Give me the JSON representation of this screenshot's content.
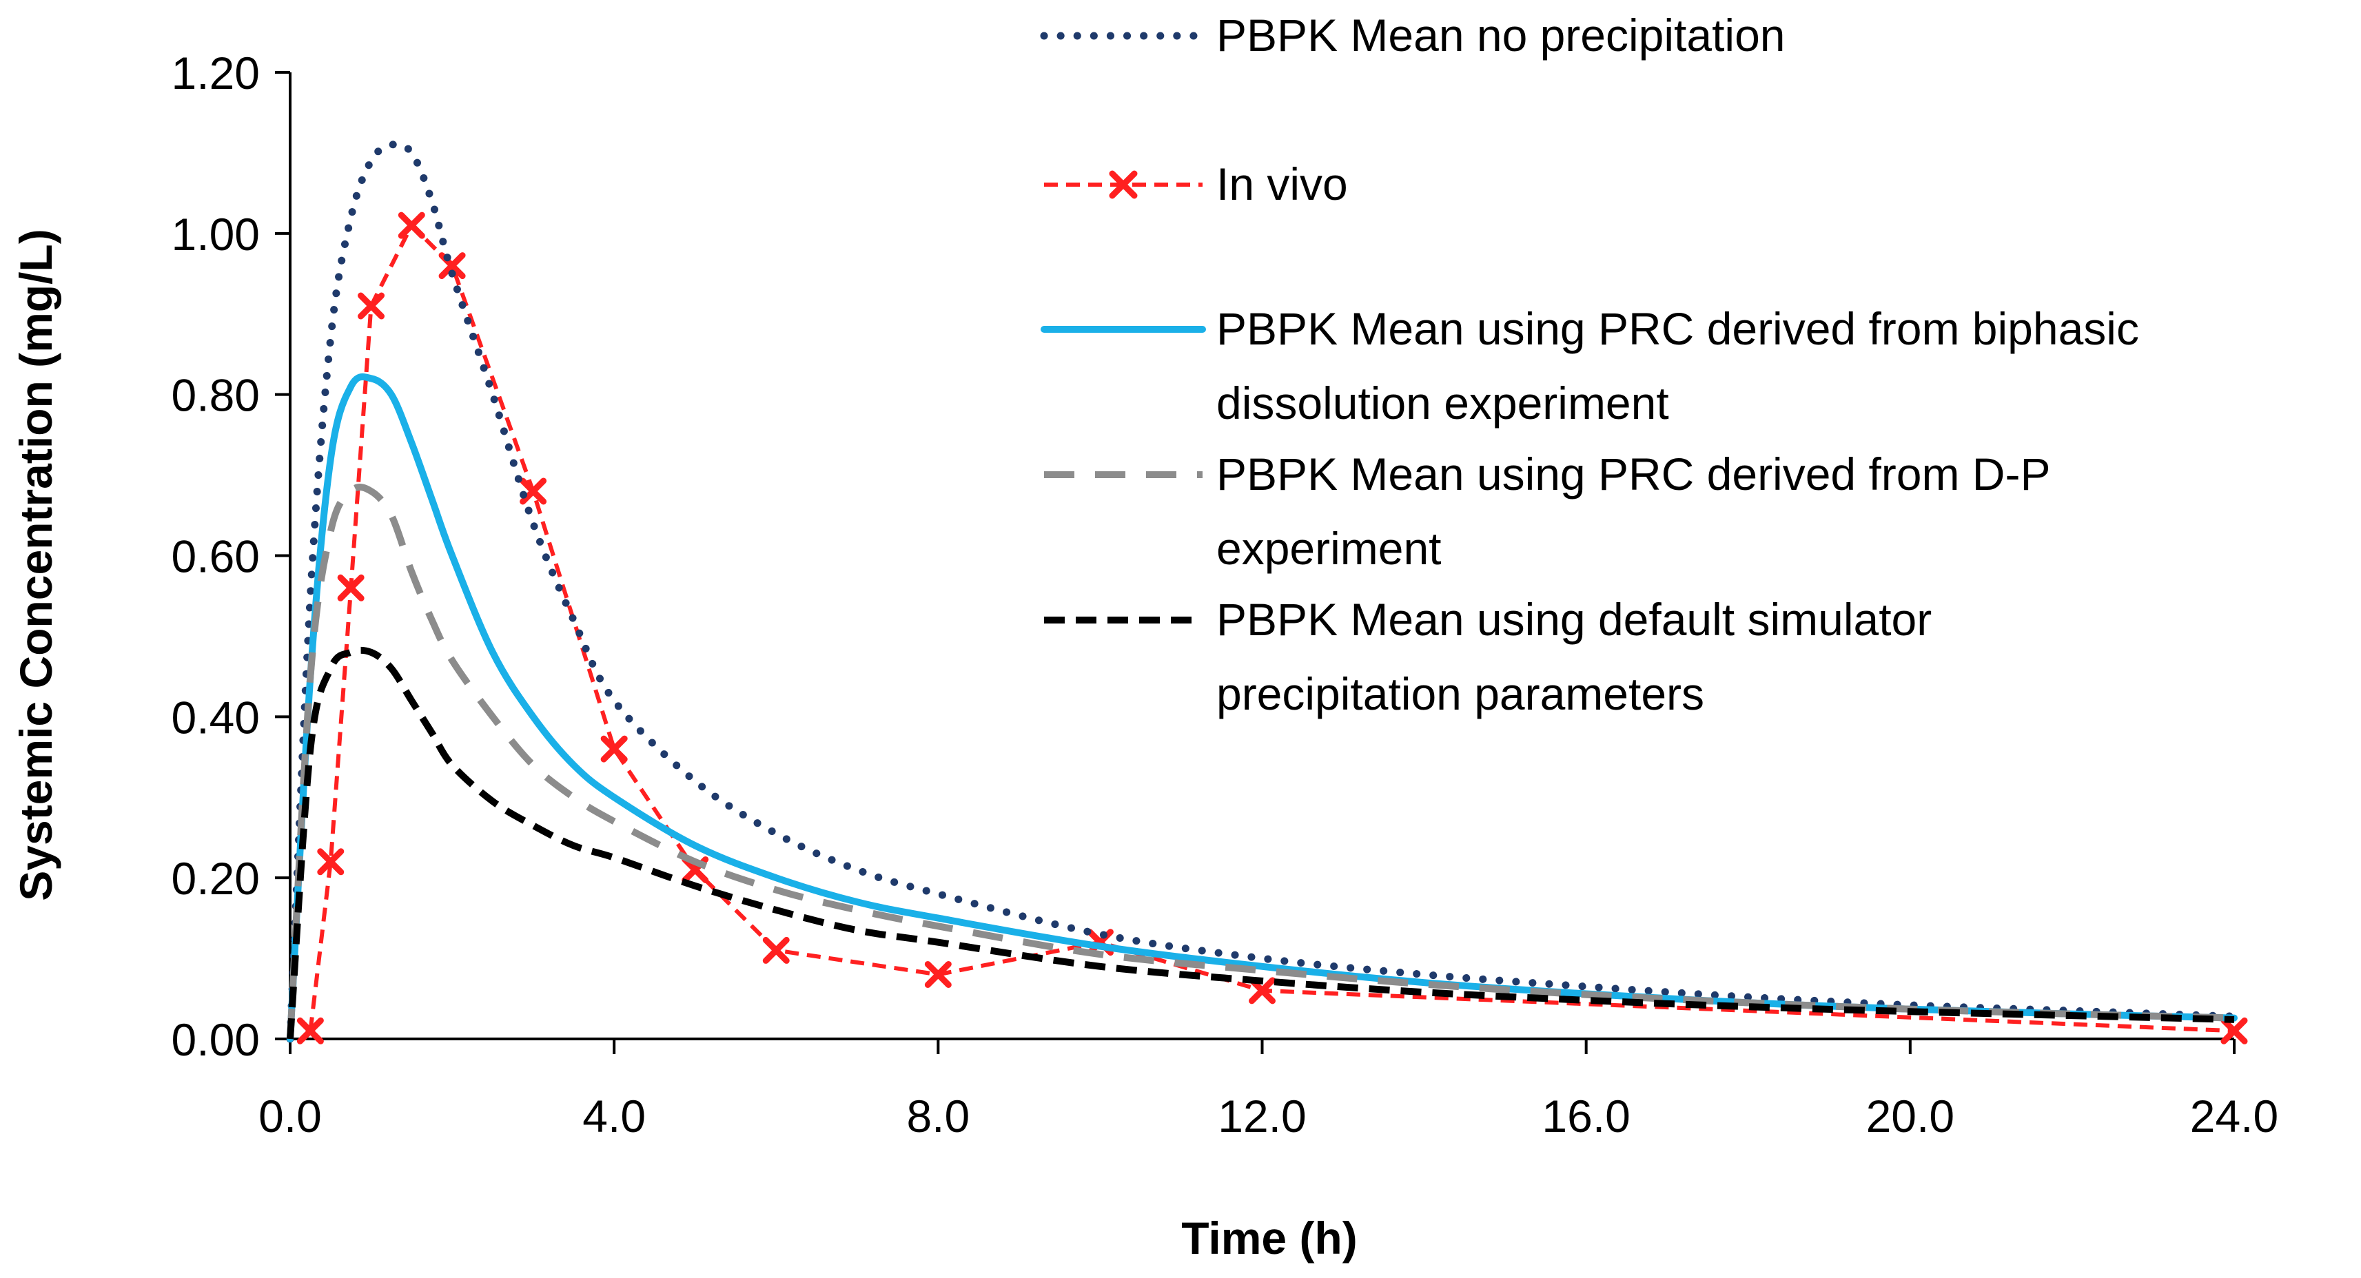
{
  "chart_data": {
    "type": "line",
    "title": "",
    "xlabel": "Time (h)",
    "ylabel": "Systemic Concentration (mg/L)",
    "xlim": [
      0,
      24
    ],
    "ylim": [
      0,
      1.2
    ],
    "x_ticks": [
      "0.0",
      "4.0",
      "8.0",
      "12.0",
      "16.0",
      "20.0",
      "24.0"
    ],
    "y_ticks": [
      "0.00",
      "0.20",
      "0.40",
      "0.60",
      "0.80",
      "1.00",
      "1.20"
    ],
    "grid": false,
    "legend_position": "top-right",
    "series": [
      {
        "name": "PBPK Mean no precipitation",
        "style": "dotted",
        "color": "#1f3a6b",
        "x": [
          0,
          0.25,
          0.5,
          0.75,
          1.0,
          1.25,
          1.5,
          1.75,
          2.0,
          2.5,
          3.0,
          3.5,
          4.0,
          5,
          6,
          7,
          8,
          10,
          12,
          14,
          16,
          18,
          20,
          22,
          24
        ],
        "y": [
          0,
          0.55,
          0.87,
          1.02,
          1.09,
          1.11,
          1.1,
          1.04,
          0.95,
          0.8,
          0.64,
          0.52,
          0.42,
          0.32,
          0.255,
          0.21,
          0.18,
          0.13,
          0.1,
          0.08,
          0.065,
          0.052,
          0.042,
          0.035,
          0.028
        ]
      },
      {
        "name": "In vivo",
        "style": "dashed-markers",
        "color": "#ff2020",
        "x": [
          0.25,
          0.5,
          0.75,
          1.0,
          1.5,
          2.0,
          3.0,
          4.0,
          5.0,
          6.0,
          8.0,
          10.0,
          12.0,
          24.0
        ],
        "y": [
          0.01,
          0.22,
          0.56,
          0.91,
          1.01,
          0.96,
          0.68,
          0.36,
          0.21,
          0.11,
          0.08,
          0.12,
          0.06,
          0.01
        ]
      },
      {
        "name": "PBPK Mean using PRC derived from biphasic dissolution experiment",
        "style": "solid",
        "color": "#1ab0e8",
        "x": [
          0,
          0.25,
          0.5,
          0.75,
          1.0,
          1.25,
          1.5,
          1.75,
          2.0,
          2.5,
          3.0,
          3.5,
          4.0,
          5,
          6,
          7,
          8,
          10,
          12,
          14,
          16,
          18,
          20,
          22,
          24
        ],
        "y": [
          0,
          0.45,
          0.72,
          0.81,
          0.82,
          0.8,
          0.74,
          0.67,
          0.6,
          0.48,
          0.4,
          0.34,
          0.3,
          0.24,
          0.2,
          0.17,
          0.15,
          0.115,
          0.09,
          0.07,
          0.056,
          0.045,
          0.037,
          0.031,
          0.026
        ]
      },
      {
        "name": "PBPK Mean using PRC derived from D-P experiment",
        "style": "long-dashed",
        "color": "#8c8c8c",
        "x": [
          0,
          0.25,
          0.5,
          0.75,
          1.0,
          1.25,
          1.5,
          1.75,
          2.0,
          2.5,
          3.0,
          3.5,
          4.0,
          5,
          6,
          7,
          8,
          10,
          12,
          14,
          16,
          18,
          20,
          22,
          24
        ],
        "y": [
          0,
          0.45,
          0.63,
          0.68,
          0.68,
          0.65,
          0.58,
          0.52,
          0.47,
          0.4,
          0.34,
          0.3,
          0.27,
          0.22,
          0.185,
          0.16,
          0.14,
          0.105,
          0.085,
          0.068,
          0.055,
          0.045,
          0.037,
          0.031,
          0.026
        ]
      },
      {
        "name": "PBPK Mean using default simulator precipitation parameters",
        "style": "dashed",
        "color": "#000000",
        "x": [
          0,
          0.25,
          0.5,
          0.75,
          1.0,
          1.25,
          1.5,
          1.75,
          2.0,
          2.5,
          3.0,
          3.5,
          4.0,
          5,
          6,
          7,
          8,
          10,
          12,
          14,
          16,
          18,
          20,
          22,
          24
        ],
        "y": [
          0,
          0.36,
          0.46,
          0.48,
          0.48,
          0.46,
          0.42,
          0.38,
          0.34,
          0.295,
          0.265,
          0.24,
          0.225,
          0.19,
          0.16,
          0.135,
          0.12,
          0.09,
          0.072,
          0.058,
          0.048,
          0.04,
          0.034,
          0.029,
          0.024
        ]
      }
    ],
    "legend": [
      {
        "lines": [
          "PBPK Mean no precipitation"
        ]
      },
      {
        "lines": [
          "In vivo"
        ]
      },
      {
        "lines": [
          "PBPK Mean using PRC derived from biphasic",
          "dissolution experiment"
        ]
      },
      {
        "lines": [
          "PBPK Mean using PRC derived from D-P",
          "experiment"
        ]
      },
      {
        "lines": [
          "PBPK Mean using default simulator",
          "precipitation parameters"
        ]
      }
    ]
  }
}
